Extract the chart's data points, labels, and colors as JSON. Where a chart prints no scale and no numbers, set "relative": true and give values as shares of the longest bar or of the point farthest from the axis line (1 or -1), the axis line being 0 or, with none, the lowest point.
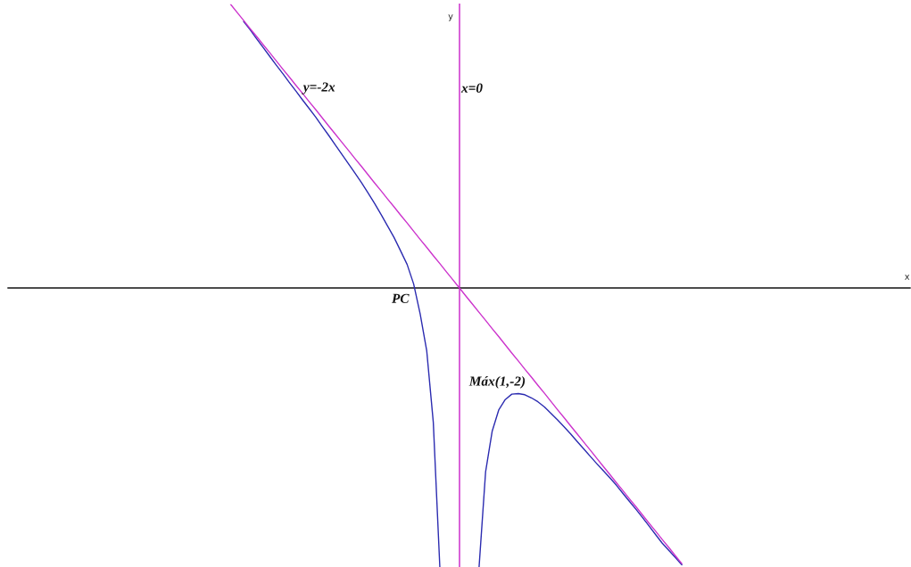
{
  "chart_data": {
    "type": "line",
    "relative": true,
    "ylabel": "y",
    "categories": [
      null,
      null,
      null,
      null,
      null,
      null,
      null,
      null,
      null,
      null,
      null,
      null,
      null,
      null,
      null,
      null,
      null,
      null,
      null,
      null,
      null,
      null,
      null,
      null,
      null,
      null,
      null,
      null,
      null,
      null,
      null,
      null,
      null,
      null,
      null,
      null,
      null,
      null,
      null,
      null,
      null,
      null,
      null,
      null,
      null,
      null,
      null,
      null,
      null,
      null,
      null,
      null,
      null,
      null,
      null,
      null,
      null,
      null,
      null,
      null,
      null,
      null,
      null,
      null,
      null,
      null,
      null,
      null,
      null,
      null
    ],
    "series": [
      {
        "color": "#2b2bb0",
        "values": [
          null,
          null,
          0.939,
          0.91,
          0.878,
          0.847,
          0.816,
          0.785,
          0.755,
          0.724,
          0.694,
          0.663,
          0.633,
          0.603,
          0.57,
          0.538,
          0.505,
          0.472,
          0.439,
          0.406,
          0.372,
          0.336,
          0.299,
          0.26,
          0.219,
          0.178,
          0.131,
          0.083,
          0.014,
          -0.092,
          -0.222,
          -0.473,
          -0.983,
          null,
          null,
          null,
          null,
          null,
          -0.983,
          -0.647,
          -0.505,
          -0.43,
          -0.393,
          -0.374,
          -0.372,
          -0.376,
          -0.387,
          -0.401,
          -0.419,
          -0.442,
          -0.465,
          -0.489,
          -0.514,
          -0.541,
          -0.567,
          -0.593,
          -0.619,
          -0.644,
          -0.669,
          -0.695,
          -0.724,
          -0.752,
          -0.78,
          -0.809,
          -0.839,
          -0.869,
          -0.899,
          -0.924,
          -0.949,
          -0.975
        ]
      },
      {
        "name": "y=-2x",
        "color": "#cc33cc",
        "values": [
          1.0,
          0.971,
          0.943,
          0.914,
          0.886,
          0.857,
          0.829,
          0.8,
          0.771,
          0.743,
          0.714,
          0.686,
          0.657,
          0.629,
          0.6,
          0.571,
          0.543,
          0.514,
          0.486,
          0.457,
          0.429,
          0.4,
          0.371,
          0.343,
          0.314,
          0.286,
          0.257,
          0.229,
          0.2,
          0.171,
          0.143,
          0.114,
          0.086,
          0.057,
          0.029,
          0.0,
          -0.029,
          -0.057,
          -0.086,
          -0.114,
          -0.143,
          -0.171,
          -0.2,
          -0.229,
          -0.257,
          -0.286,
          -0.314,
          -0.343,
          -0.371,
          -0.4,
          -0.429,
          -0.457,
          -0.486,
          -0.514,
          -0.543,
          -0.571,
          -0.6,
          -0.629,
          -0.657,
          -0.686,
          -0.714,
          -0.743,
          -0.771,
          -0.8,
          -0.829,
          -0.857,
          -0.886,
          -0.914,
          -0.943,
          -0.971
        ]
      }
    ],
    "annotations": [
      "x=0",
      "x",
      "PC",
      "Máx(1,-2)"
    ]
  }
}
